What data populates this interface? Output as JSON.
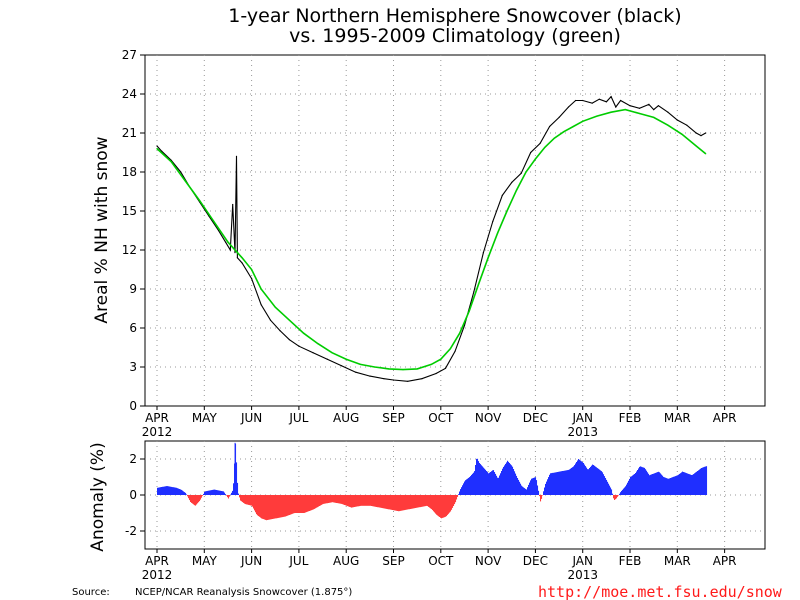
{
  "chart_data": [
    {
      "type": "line",
      "title": "1-year Northern Hemisphere Snowcover (black)",
      "subtitle": "vs. 1995-2009 Climatology (green)",
      "xlabel": "",
      "ylabel": "Areal % NH with snow",
      "ylim": [
        0,
        27
      ],
      "yticks": [
        "0",
        "3",
        "6",
        "9",
        "12",
        "15",
        "18",
        "21",
        "24",
        "27"
      ],
      "xticks": [
        "APR",
        "MAY",
        "JUN",
        "JUL",
        "AUG",
        "SEP",
        "OCT",
        "NOV",
        "DEC",
        "JAN",
        "FEB",
        "MAR",
        "APR"
      ],
      "year_labels": [
        "2012",
        "2013"
      ],
      "grid": true,
      "x_unit": "months since 1 Apr 2012",
      "series": [
        {
          "color": "#000000",
          "points": [
            [
              0.0,
              20.0
            ],
            [
              0.1,
              19.6
            ],
            [
              0.3,
              18.9
            ],
            [
              0.5,
              18.0
            ],
            [
              0.7,
              16.8
            ],
            [
              0.9,
              15.7
            ],
            [
              1.1,
              14.6
            ],
            [
              1.3,
              13.5
            ],
            [
              1.45,
              12.6
            ],
            [
              1.55,
              12.0
            ],
            [
              1.6,
              15.5
            ],
            [
              1.65,
              11.8
            ],
            [
              1.68,
              19.2
            ],
            [
              1.7,
              11.4
            ],
            [
              1.8,
              11.0
            ],
            [
              2.0,
              9.8
            ],
            [
              2.2,
              7.8
            ],
            [
              2.4,
              6.6
            ],
            [
              2.6,
              5.8
            ],
            [
              2.8,
              5.1
            ],
            [
              3.0,
              4.6
            ],
            [
              3.3,
              4.1
            ],
            [
              3.6,
              3.6
            ],
            [
              3.9,
              3.1
            ],
            [
              4.2,
              2.6
            ],
            [
              4.5,
              2.3
            ],
            [
              4.8,
              2.1
            ],
            [
              5.0,
              2.0
            ],
            [
              5.3,
              1.9
            ],
            [
              5.6,
              2.1
            ],
            [
              5.9,
              2.5
            ],
            [
              6.1,
              2.9
            ],
            [
              6.3,
              4.2
            ],
            [
              6.5,
              6.2
            ],
            [
              6.7,
              8.8
            ],
            [
              6.9,
              11.8
            ],
            [
              7.1,
              14.2
            ],
            [
              7.3,
              16.2
            ],
            [
              7.5,
              17.2
            ],
            [
              7.7,
              17.9
            ],
            [
              7.9,
              19.5
            ],
            [
              8.1,
              20.2
            ],
            [
              8.3,
              21.5
            ],
            [
              8.5,
              22.2
            ],
            [
              8.7,
              23.0
            ],
            [
              8.85,
              23.5
            ],
            [
              9.0,
              23.5
            ],
            [
              9.2,
              23.3
            ],
            [
              9.35,
              23.6
            ],
            [
              9.5,
              23.4
            ],
            [
              9.6,
              23.8
            ],
            [
              9.7,
              23.0
            ],
            [
              9.8,
              23.5
            ],
            [
              10.0,
              23.1
            ],
            [
              10.2,
              22.9
            ],
            [
              10.4,
              23.2
            ],
            [
              10.5,
              22.8
            ],
            [
              10.6,
              23.1
            ],
            [
              10.8,
              22.6
            ],
            [
              11.0,
              22.0
            ],
            [
              11.2,
              21.6
            ],
            [
              11.4,
              21.0
            ],
            [
              11.5,
              20.8
            ],
            [
              11.6,
              21.0
            ]
          ]
        },
        {
          "color": "#00cc00",
          "points": [
            [
              0.0,
              19.8
            ],
            [
              0.3,
              18.8
            ],
            [
              0.6,
              17.3
            ],
            [
              0.9,
              15.8
            ],
            [
              1.2,
              14.2
            ],
            [
              1.5,
              12.6
            ],
            [
              1.8,
              11.4
            ],
            [
              2.0,
              10.5
            ],
            [
              2.2,
              9.0
            ],
            [
              2.5,
              7.6
            ],
            [
              2.8,
              6.6
            ],
            [
              3.1,
              5.6
            ],
            [
              3.4,
              4.8
            ],
            [
              3.7,
              4.1
            ],
            [
              4.0,
              3.6
            ],
            [
              4.3,
              3.2
            ],
            [
              4.6,
              3.0
            ],
            [
              4.9,
              2.85
            ],
            [
              5.2,
              2.8
            ],
            [
              5.5,
              2.85
            ],
            [
              5.8,
              3.2
            ],
            [
              6.0,
              3.6
            ],
            [
              6.2,
              4.4
            ],
            [
              6.4,
              5.6
            ],
            [
              6.6,
              7.3
            ],
            [
              6.8,
              9.4
            ],
            [
              7.0,
              11.4
            ],
            [
              7.2,
              13.3
            ],
            [
              7.4,
              15.0
            ],
            [
              7.6,
              16.6
            ],
            [
              7.8,
              18.0
            ],
            [
              8.0,
              19.0
            ],
            [
              8.2,
              19.9
            ],
            [
              8.4,
              20.6
            ],
            [
              8.6,
              21.1
            ],
            [
              8.8,
              21.5
            ],
            [
              9.0,
              21.9
            ],
            [
              9.3,
              22.3
            ],
            [
              9.6,
              22.6
            ],
            [
              9.9,
              22.8
            ],
            [
              10.2,
              22.5
            ],
            [
              10.5,
              22.2
            ],
            [
              10.8,
              21.6
            ],
            [
              11.1,
              20.9
            ],
            [
              11.4,
              20.0
            ],
            [
              11.6,
              19.4
            ]
          ]
        }
      ]
    },
    {
      "type": "bar",
      "title": "",
      "xlabel": "",
      "ylabel": "Anomaly (%)",
      "ylim": [
        -3,
        3
      ],
      "yticks": [
        "-2",
        "0",
        "2"
      ],
      "xticks": [
        "APR",
        "MAY",
        "JUN",
        "JUL",
        "AUG",
        "SEP",
        "OCT",
        "NOV",
        "DEC",
        "JAN",
        "FEB",
        "MAR",
        "APR"
      ],
      "year_labels": [
        "2012",
        "2013"
      ],
      "grid": true,
      "x_unit": "months since 1 Apr 2012",
      "positive_color": "#1f2fff",
      "negative_color": "#ff3b3b",
      "points": [
        [
          0.0,
          0.4
        ],
        [
          0.2,
          0.5
        ],
        [
          0.4,
          0.4
        ],
        [
          0.5,
          0.3
        ],
        [
          0.6,
          0.1
        ],
        [
          0.7,
          -0.4
        ],
        [
          0.8,
          -0.6
        ],
        [
          0.9,
          -0.3
        ],
        [
          1.0,
          0.2
        ],
        [
          1.2,
          0.3
        ],
        [
          1.4,
          0.2
        ],
        [
          1.5,
          -0.2
        ],
        [
          1.6,
          0.3
        ],
        [
          1.65,
          2.9
        ],
        [
          1.7,
          0.2
        ],
        [
          1.75,
          -0.3
        ],
        [
          1.85,
          -0.5
        ],
        [
          2.0,
          -0.6
        ],
        [
          2.1,
          -1.1
        ],
        [
          2.2,
          -1.3
        ],
        [
          2.3,
          -1.4
        ],
        [
          2.5,
          -1.3
        ],
        [
          2.7,
          -1.2
        ],
        [
          2.9,
          -1.0
        ],
        [
          3.1,
          -1.0
        ],
        [
          3.3,
          -0.8
        ],
        [
          3.5,
          -0.5
        ],
        [
          3.7,
          -0.4
        ],
        [
          3.9,
          -0.5
        ],
        [
          4.1,
          -0.7
        ],
        [
          4.3,
          -0.6
        ],
        [
          4.5,
          -0.6
        ],
        [
          4.7,
          -0.7
        ],
        [
          4.9,
          -0.8
        ],
        [
          5.1,
          -0.9
        ],
        [
          5.3,
          -0.8
        ],
        [
          5.5,
          -0.7
        ],
        [
          5.7,
          -0.6
        ],
        [
          5.8,
          -0.8
        ],
        [
          5.9,
          -1.1
        ],
        [
          6.0,
          -1.3
        ],
        [
          6.1,
          -1.2
        ],
        [
          6.2,
          -0.9
        ],
        [
          6.3,
          -0.4
        ],
        [
          6.4,
          0.3
        ],
        [
          6.5,
          0.8
        ],
        [
          6.6,
          1.0
        ],
        [
          6.7,
          1.3
        ],
        [
          6.75,
          2.1
        ],
        [
          6.8,
          1.8
        ],
        [
          6.9,
          1.5
        ],
        [
          7.0,
          1.2
        ],
        [
          7.1,
          1.4
        ],
        [
          7.2,
          0.9
        ],
        [
          7.3,
          1.5
        ],
        [
          7.4,
          1.9
        ],
        [
          7.5,
          1.6
        ],
        [
          7.6,
          1.0
        ],
        [
          7.7,
          0.5
        ],
        [
          7.8,
          0.3
        ],
        [
          7.9,
          0.9
        ],
        [
          8.0,
          1.0
        ],
        [
          8.1,
          -0.4
        ],
        [
          8.2,
          0.6
        ],
        [
          8.3,
          1.2
        ],
        [
          8.5,
          1.3
        ],
        [
          8.7,
          1.4
        ],
        [
          8.8,
          1.6
        ],
        [
          8.9,
          2.0
        ],
        [
          9.0,
          1.8
        ],
        [
          9.1,
          1.4
        ],
        [
          9.2,
          1.7
        ],
        [
          9.3,
          1.5
        ],
        [
          9.4,
          1.3
        ],
        [
          9.5,
          0.8
        ],
        [
          9.6,
          0.3
        ],
        [
          9.65,
          -0.3
        ],
        [
          9.7,
          -0.2
        ],
        [
          9.8,
          0.2
        ],
        [
          9.9,
          0.5
        ],
        [
          10.0,
          1.0
        ],
        [
          10.1,
          1.2
        ],
        [
          10.2,
          1.6
        ],
        [
          10.3,
          1.5
        ],
        [
          10.4,
          1.1
        ],
        [
          10.5,
          1.2
        ],
        [
          10.6,
          1.3
        ],
        [
          10.7,
          1.0
        ],
        [
          10.8,
          0.9
        ],
        [
          10.9,
          1.0
        ],
        [
          11.0,
          1.1
        ],
        [
          11.1,
          1.3
        ],
        [
          11.2,
          1.2
        ],
        [
          11.3,
          1.1
        ],
        [
          11.4,
          1.3
        ],
        [
          11.5,
          1.5
        ],
        [
          11.6,
          1.6
        ]
      ]
    }
  ],
  "footer": {
    "source_label": "Source:",
    "source_text": "NCEP/NCAR Reanalysis Snowcover (1.875°)",
    "url": "http://moe.met.fsu.edu/snow"
  }
}
